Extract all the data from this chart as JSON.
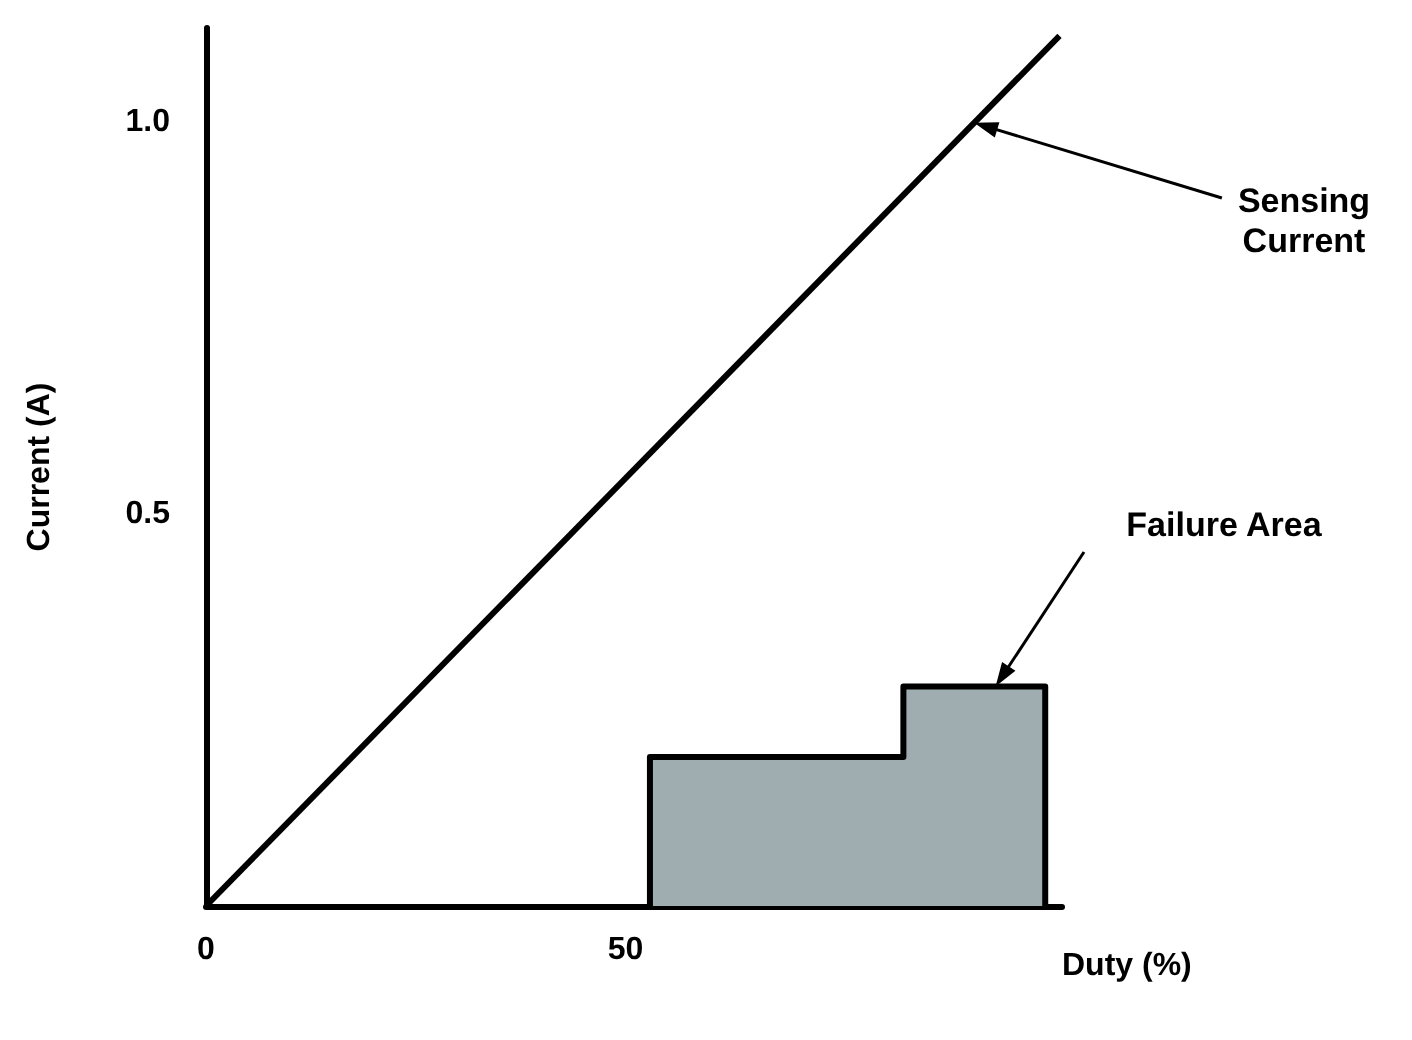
{
  "chart_data": {
    "type": "line",
    "xlabel": "Duty (%)",
    "ylabel": "Current (A)",
    "series": [
      {
        "color": "#000000",
        "x": [
          0,
          101.7
        ],
        "values": [
          0,
          1.11
        ]
      },
      {
        "type": "area",
        "color": "#a0adb0",
        "x": [
          52.9,
          52.9,
          83.1,
          83.1,
          100,
          100
        ],
        "values": [
          0,
          0.19,
          0.19,
          0.28,
          0.28,
          0
        ]
      }
    ],
    "xlim": [
      0,
      102
    ],
    "ylim": [
      0,
      1.12
    ],
    "xticks": [
      0,
      50
    ],
    "yticks": [
      0.5,
      {
        "value": 1,
        "label": "1.0"
      }
    ],
    "annotations": [
      "Sensing\nCurrent",
      "Failure Area"
    ],
    "grid": false,
    "marker": "none",
    "line_style": "solid"
  }
}
